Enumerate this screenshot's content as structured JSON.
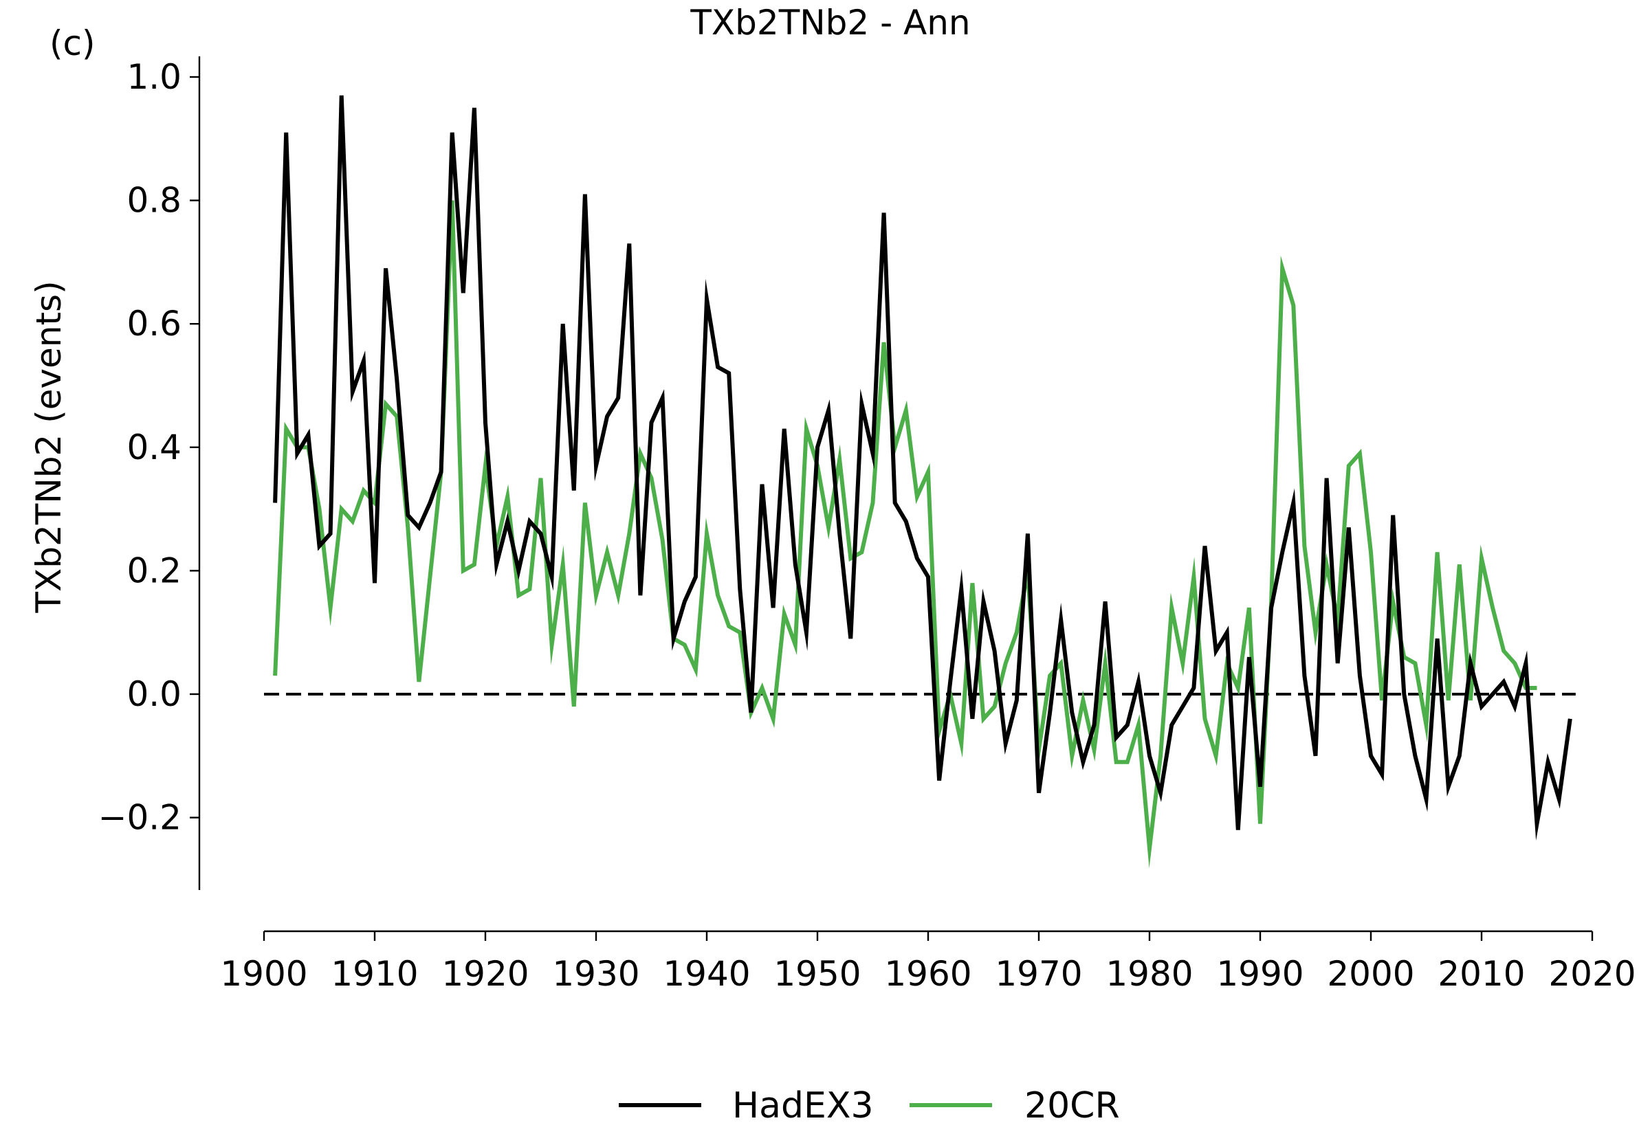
{
  "panel_label": "(c)",
  "chart_data": {
    "type": "line",
    "title": "TXb2TNb2 - Ann",
    "xlabel": "",
    "ylabel": "TXb2TNb2 (events)",
    "xlim": [
      1900,
      2020
    ],
    "ylim": [
      -0.32,
      1.03
    ],
    "xticks": [
      1900,
      1910,
      1920,
      1930,
      1940,
      1950,
      1960,
      1970,
      1980,
      1990,
      2000,
      2010,
      2020
    ],
    "yticks": [
      -0.2,
      0.0,
      0.2,
      0.4,
      0.6,
      0.8,
      1.0
    ],
    "ytick_labels": [
      "−0.2",
      "0.0",
      "0.2",
      "0.4",
      "0.6",
      "0.8",
      "1.0"
    ],
    "grid": false,
    "legend_position": "bottom-center",
    "reference_line": {
      "y": 0.0,
      "style": "dashed",
      "color": "#000000"
    },
    "series": [
      {
        "name": "HadEX3",
        "color": "#000000",
        "x_start": 1901,
        "values": [
          0.31,
          0.91,
          0.39,
          0.42,
          0.24,
          0.26,
          0.97,
          0.49,
          0.54,
          0.18,
          0.69,
          0.51,
          0.29,
          0.27,
          0.31,
          0.36,
          0.91,
          0.65,
          0.95,
          0.44,
          0.21,
          0.28,
          0.2,
          0.28,
          0.26,
          0.19,
          0.6,
          0.33,
          0.81,
          0.37,
          0.45,
          0.48,
          0.73,
          0.16,
          0.44,
          0.48,
          0.09,
          0.15,
          0.19,
          0.64,
          0.53,
          0.52,
          0.17,
          -0.03,
          0.34,
          0.14,
          0.43,
          0.21,
          0.1,
          0.4,
          0.46,
          0.26,
          0.09,
          0.47,
          0.39,
          0.78,
          0.31,
          0.28,
          0.22,
          0.19,
          -0.14,
          0.02,
          0.17,
          -0.04,
          0.15,
          0.07,
          -0.08,
          -0.01,
          0.26,
          -0.16,
          -0.03,
          0.12,
          -0.03,
          -0.11,
          -0.05,
          0.15,
          -0.07,
          -0.05,
          0.02,
          -0.1,
          -0.16,
          -0.05,
          -0.02,
          0.01,
          0.24,
          0.07,
          0.1,
          -0.22,
          0.06,
          -0.15,
          0.14,
          0.23,
          0.31,
          0.03,
          -0.1,
          0.35,
          0.05,
          0.27,
          0.03,
          -0.1,
          -0.13,
          0.29,
          0.0,
          -0.1,
          -0.17,
          0.09,
          -0.15,
          -0.1,
          0.05,
          -0.02,
          0.0,
          0.02,
          -0.02,
          0.05,
          -0.21,
          -0.11,
          -0.17,
          -0.04
        ]
      },
      {
        "name": "20CR",
        "color": "#4daf4a",
        "x_start": 1901,
        "values": [
          0.03,
          0.43,
          0.4,
          0.4,
          0.3,
          0.14,
          0.3,
          0.28,
          0.33,
          0.31,
          0.47,
          0.45,
          0.27,
          0.02,
          0.19,
          0.36,
          0.8,
          0.2,
          0.21,
          0.37,
          0.24,
          0.32,
          0.16,
          0.17,
          0.35,
          0.08,
          0.21,
          -0.02,
          0.31,
          0.16,
          0.23,
          0.16,
          0.26,
          0.39,
          0.35,
          0.25,
          0.09,
          0.08,
          0.04,
          0.26,
          0.16,
          0.11,
          0.1,
          -0.03,
          0.01,
          -0.04,
          0.13,
          0.08,
          0.43,
          0.37,
          0.27,
          0.38,
          0.22,
          0.23,
          0.31,
          0.57,
          0.4,
          0.46,
          0.32,
          0.36,
          -0.06,
          0.0,
          -0.08,
          0.18,
          -0.04,
          -0.02,
          0.05,
          0.1,
          0.2,
          -0.09,
          0.03,
          0.05,
          -0.1,
          -0.01,
          -0.09,
          0.05,
          -0.11,
          -0.11,
          -0.05,
          -0.25,
          -0.1,
          0.14,
          0.05,
          0.19,
          -0.04,
          -0.1,
          0.05,
          0.01,
          0.14,
          -0.21,
          0.15,
          0.69,
          0.63,
          0.24,
          0.1,
          0.21,
          0.12,
          0.37,
          0.39,
          0.23,
          -0.01,
          0.15,
          0.06,
          0.05,
          -0.05,
          0.23,
          -0.01,
          0.21,
          -0.01,
          0.22,
          0.14,
          0.07,
          0.05,
          0.01,
          0.01
        ]
      }
    ]
  }
}
